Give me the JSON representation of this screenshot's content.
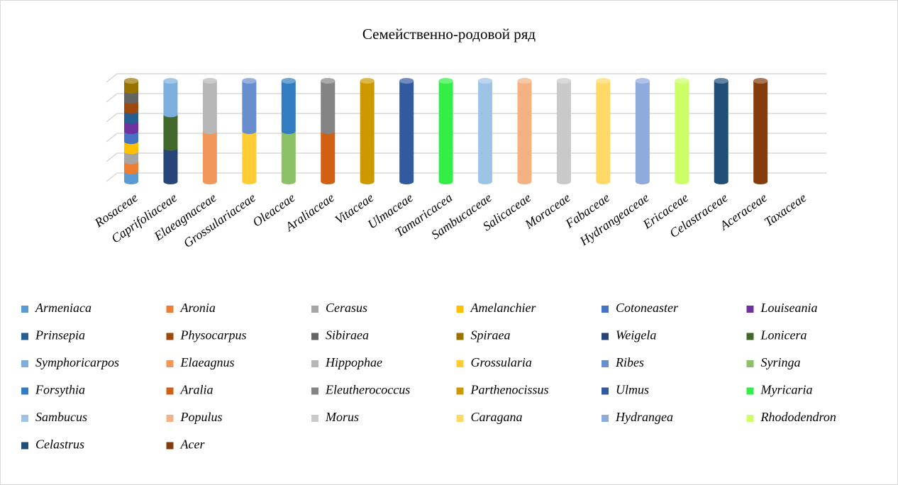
{
  "chart_data": {
    "type": "bar3d_stacked",
    "title": "Семейственно-родовой ряд",
    "categories": [
      "Rosaceae",
      "Caprifoliaceae",
      "Elaeagnaceae",
      "Grossulariaceae",
      "Oleaceae",
      "Araliaceae",
      "Vitaceae",
      "Ulmaceae",
      "Tamaricacea",
      "Sambucaceae",
      "Salicaceae",
      "Moraceae",
      "Fabaceae",
      "Hydrangeaceae",
      "Ericaceae",
      "Celastraceae",
      "Aceraceae",
      "Taxaceae"
    ],
    "ylim": [
      0,
      100
    ],
    "yticks": [
      0,
      20,
      40,
      60,
      80,
      100
    ],
    "grid": true,
    "series": [
      {
        "name": "Armeniaca",
        "color": "#5b9bd5",
        "values": [
          10,
          null,
          null,
          null,
          null,
          null,
          null,
          null,
          null,
          null,
          null,
          null,
          null,
          null,
          null,
          null,
          null,
          null
        ]
      },
      {
        "name": "Aronia",
        "color": "#ed7d31",
        "values": [
          10,
          null,
          null,
          null,
          null,
          null,
          null,
          null,
          null,
          null,
          null,
          null,
          null,
          null,
          null,
          null,
          null,
          null
        ]
      },
      {
        "name": "Cerasus",
        "color": "#a5a5a5",
        "values": [
          10,
          null,
          null,
          null,
          null,
          null,
          null,
          null,
          null,
          null,
          null,
          null,
          null,
          null,
          null,
          null,
          null,
          null
        ]
      },
      {
        "name": "Amelanchier",
        "color": "#ffc000",
        "values": [
          10,
          null,
          null,
          null,
          null,
          null,
          null,
          null,
          null,
          null,
          null,
          null,
          null,
          null,
          null,
          null,
          null,
          null
        ]
      },
      {
        "name": "Cotoneaster",
        "color": "#4472c4",
        "values": [
          10,
          null,
          null,
          null,
          null,
          null,
          null,
          null,
          null,
          null,
          null,
          null,
          null,
          null,
          null,
          null,
          null,
          null
        ]
      },
      {
        "name": "Louiseania",
        "color": "#7030a0",
        "values": [
          10,
          null,
          null,
          null,
          null,
          null,
          null,
          null,
          null,
          null,
          null,
          null,
          null,
          null,
          null,
          null,
          null,
          null
        ]
      },
      {
        "name": "Prinsepia",
        "color": "#255e91",
        "values": [
          10,
          null,
          null,
          null,
          null,
          null,
          null,
          null,
          null,
          null,
          null,
          null,
          null,
          null,
          null,
          null,
          null,
          null
        ]
      },
      {
        "name": "Physocarpus",
        "color": "#9e480e",
        "values": [
          10,
          null,
          null,
          null,
          null,
          null,
          null,
          null,
          null,
          null,
          null,
          null,
          null,
          null,
          null,
          null,
          null,
          null
        ]
      },
      {
        "name": "Sibiraea",
        "color": "#636363",
        "values": [
          10,
          null,
          null,
          null,
          null,
          null,
          null,
          null,
          null,
          null,
          null,
          null,
          null,
          null,
          null,
          null,
          null,
          null
        ]
      },
      {
        "name": "Spiraea",
        "color": "#997300",
        "values": [
          10,
          null,
          null,
          null,
          null,
          null,
          null,
          null,
          null,
          null,
          null,
          null,
          null,
          null,
          null,
          null,
          null,
          null
        ]
      },
      {
        "name": "Weigela",
        "color": "#264478",
        "values": [
          null,
          33.3,
          null,
          null,
          null,
          null,
          null,
          null,
          null,
          null,
          null,
          null,
          null,
          null,
          null,
          null,
          null,
          null
        ]
      },
      {
        "name": "Lonicera",
        "color": "#43682b",
        "values": [
          null,
          33.3,
          null,
          null,
          null,
          null,
          null,
          null,
          null,
          null,
          null,
          null,
          null,
          null,
          null,
          null,
          null,
          null
        ]
      },
      {
        "name": "Symphoricarpos",
        "color": "#7cafdd",
        "values": [
          null,
          33.3,
          null,
          null,
          null,
          null,
          null,
          null,
          null,
          null,
          null,
          null,
          null,
          null,
          null,
          null,
          null,
          null
        ]
      },
      {
        "name": "Elaeagnus",
        "color": "#f1975a",
        "values": [
          null,
          null,
          50,
          null,
          null,
          null,
          null,
          null,
          null,
          null,
          null,
          null,
          null,
          null,
          null,
          null,
          null,
          null
        ]
      },
      {
        "name": "Hippophae",
        "color": "#b7b7b7",
        "values": [
          null,
          null,
          50,
          null,
          null,
          null,
          null,
          null,
          null,
          null,
          null,
          null,
          null,
          null,
          null,
          null,
          null,
          null
        ]
      },
      {
        "name": "Grossularia",
        "color": "#ffcd33",
        "values": [
          null,
          null,
          null,
          50,
          null,
          null,
          null,
          null,
          null,
          null,
          null,
          null,
          null,
          null,
          null,
          null,
          null,
          null
        ]
      },
      {
        "name": "Ribes",
        "color": "#698ed0",
        "values": [
          null,
          null,
          null,
          50,
          null,
          null,
          null,
          null,
          null,
          null,
          null,
          null,
          null,
          null,
          null,
          null,
          null,
          null
        ]
      },
      {
        "name": "Syringa",
        "color": "#8cc168",
        "values": [
          null,
          null,
          null,
          null,
          50,
          null,
          null,
          null,
          null,
          null,
          null,
          null,
          null,
          null,
          null,
          null,
          null,
          null
        ]
      },
      {
        "name": "Forsythia",
        "color": "#327dc2",
        "values": [
          null,
          null,
          null,
          null,
          50,
          null,
          null,
          null,
          null,
          null,
          null,
          null,
          null,
          null,
          null,
          null,
          null,
          null
        ]
      },
      {
        "name": "Aralia",
        "color": "#d26012",
        "values": [
          null,
          null,
          null,
          null,
          null,
          50,
          null,
          null,
          null,
          null,
          null,
          null,
          null,
          null,
          null,
          null,
          null,
          null
        ]
      },
      {
        "name": "Eleutherococcus",
        "color": "#848484",
        "values": [
          null,
          null,
          null,
          null,
          null,
          50,
          null,
          null,
          null,
          null,
          null,
          null,
          null,
          null,
          null,
          null,
          null,
          null
        ]
      },
      {
        "name": "Parthenocissus",
        "color": "#cc9a00",
        "values": [
          null,
          null,
          null,
          null,
          null,
          null,
          100,
          null,
          null,
          null,
          null,
          null,
          null,
          null,
          null,
          null,
          null,
          null
        ]
      },
      {
        "name": "Ulmus",
        "color": "#335aa1",
        "values": [
          null,
          null,
          null,
          null,
          null,
          null,
          null,
          100,
          null,
          null,
          null,
          null,
          null,
          null,
          null,
          null,
          null,
          null
        ]
      },
      {
        "name": "Myricaria",
        "color": "#33ee44",
        "values": [
          null,
          null,
          null,
          null,
          null,
          null,
          null,
          null,
          100,
          null,
          null,
          null,
          null,
          null,
          null,
          null,
          null,
          null
        ]
      },
      {
        "name": "Sambucus",
        "color": "#9dc3e6",
        "values": [
          null,
          null,
          null,
          null,
          null,
          null,
          null,
          null,
          null,
          100,
          null,
          null,
          null,
          null,
          null,
          null,
          null,
          null
        ]
      },
      {
        "name": "Populus",
        "color": "#f4b183",
        "values": [
          null,
          null,
          null,
          null,
          null,
          null,
          null,
          null,
          null,
          null,
          100,
          null,
          null,
          null,
          null,
          null,
          null,
          null
        ]
      },
      {
        "name": "Morus",
        "color": "#c9c9c9",
        "values": [
          null,
          null,
          null,
          null,
          null,
          null,
          null,
          null,
          null,
          null,
          null,
          100,
          null,
          null,
          null,
          null,
          null,
          null
        ]
      },
      {
        "name": "Caragana",
        "color": "#ffd966",
        "values": [
          null,
          null,
          null,
          null,
          null,
          null,
          null,
          null,
          null,
          null,
          null,
          null,
          100,
          null,
          null,
          null,
          null,
          null
        ]
      },
      {
        "name": "Hydrangea",
        "color": "#8faadc",
        "values": [
          null,
          null,
          null,
          null,
          null,
          null,
          null,
          null,
          null,
          null,
          null,
          null,
          null,
          100,
          null,
          null,
          null,
          null
        ]
      },
      {
        "name": "Rhododendron",
        "color": "#ccff66",
        "values": [
          null,
          null,
          null,
          null,
          null,
          null,
          null,
          null,
          null,
          null,
          null,
          null,
          null,
          null,
          100,
          null,
          null,
          null
        ]
      },
      {
        "name": "Celastrus",
        "color": "#1f4e79",
        "values": [
          null,
          null,
          null,
          null,
          null,
          null,
          null,
          null,
          null,
          null,
          null,
          null,
          null,
          null,
          null,
          100,
          null,
          null
        ]
      },
      {
        "name": "Acer",
        "color": "#843c0c",
        "values": [
          null,
          null,
          null,
          null,
          null,
          null,
          null,
          null,
          null,
          null,
          null,
          null,
          null,
          null,
          null,
          null,
          100,
          null
        ]
      }
    ]
  }
}
